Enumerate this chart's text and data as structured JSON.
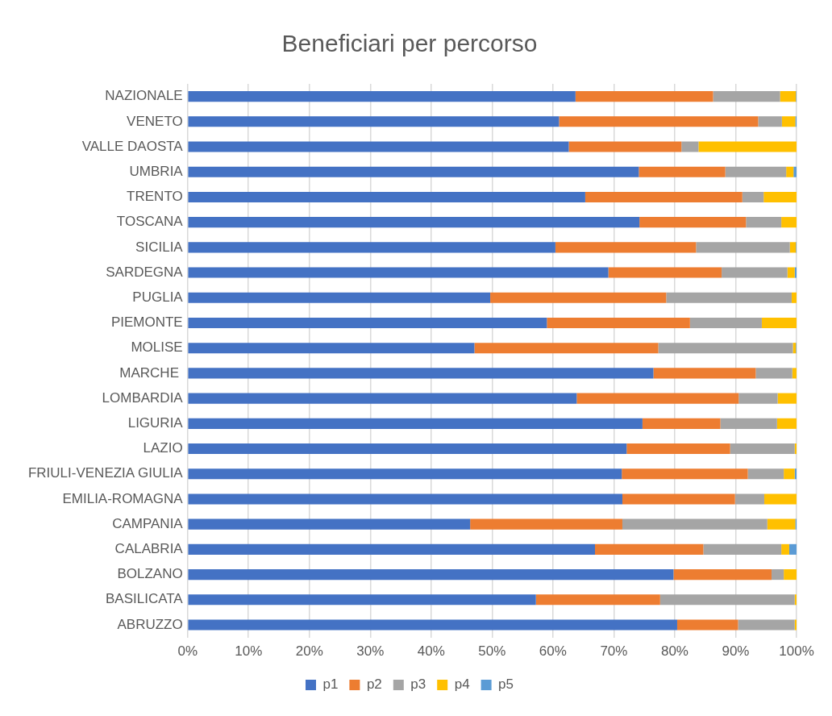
{
  "chart_data": {
    "type": "bar",
    "orientation": "horizontal",
    "stacked": true,
    "title": "Beneficiari per percorso",
    "categories": [
      "NAZIONALE",
      "VENETO",
      "VALLE DAOSTA",
      "UMBRIA",
      "TRENTO",
      "TOSCANA",
      "SICILIA",
      "SARDEGNA",
      "PUGLIA",
      "PIEMONTE",
      "MOLISE",
      "MARCHE ",
      "LOMBARDIA",
      "LIGURIA",
      "LAZIO",
      "FRIULI-VENEZIA GIULIA",
      "EMILIA-ROMAGNA",
      "CAMPANIA",
      "CALABRIA",
      "BOLZANO",
      "BASILICATA",
      "ABRUZZO"
    ],
    "series": [
      {
        "name": "p1",
        "color": "#4472c4",
        "values": [
          63.7,
          61.0,
          62.6,
          74.1,
          65.3,
          74.2,
          60.4,
          69.1,
          49.7,
          59.0,
          47.1,
          76.5,
          63.9,
          74.7,
          72.1,
          71.3,
          71.4,
          46.4,
          66.9,
          79.8,
          57.2,
          80.4
        ]
      },
      {
        "name": "p2",
        "color": "#ed7d31",
        "values": [
          22.6,
          32.7,
          18.5,
          14.2,
          25.8,
          17.5,
          23.1,
          18.6,
          28.9,
          23.5,
          30.2,
          16.8,
          26.6,
          12.8,
          17.0,
          20.7,
          18.5,
          25.0,
          17.8,
          16.1,
          20.4,
          10.0
        ]
      },
      {
        "name": "p3",
        "color": "#a5a5a5",
        "values": [
          11.0,
          3.9,
          2.8,
          10.0,
          3.5,
          5.8,
          15.4,
          10.8,
          20.6,
          11.8,
          22.1,
          6.0,
          6.4,
          9.3,
          10.6,
          5.9,
          4.8,
          23.8,
          12.8,
          2.0,
          22.1,
          9.3
        ]
      },
      {
        "name": "p4",
        "color": "#ffc000",
        "values": [
          2.6,
          2.2,
          16.1,
          1.2,
          5.4,
          2.5,
          1.0,
          1.2,
          0.8,
          5.7,
          0.5,
          0.7,
          3.1,
          3.2,
          0.3,
          1.8,
          5.3,
          4.6,
          1.3,
          2.1,
          0.3,
          0.3
        ]
      },
      {
        "name": "p5",
        "color": "#5b9bd5",
        "values": [
          0.1,
          0.2,
          0,
          0.5,
          0,
          0,
          0.1,
          0.3,
          0,
          0,
          0.1,
          0,
          0,
          0,
          0,
          0.3,
          0,
          0.2,
          1.2,
          0,
          0,
          0
        ]
      }
    ],
    "xlim": [
      0,
      100
    ],
    "xticks": [
      {
        "value": 0,
        "label": "0%"
      },
      {
        "value": 10,
        "label": "10%"
      },
      {
        "value": 20,
        "label": "20%"
      },
      {
        "value": 30,
        "label": "30%"
      },
      {
        "value": 40,
        "label": "40%"
      },
      {
        "value": 50,
        "label": "50%"
      },
      {
        "value": 60,
        "label": "60%"
      },
      {
        "value": 70,
        "label": "70%"
      },
      {
        "value": 80,
        "label": "80%"
      },
      {
        "value": 90,
        "label": "90%"
      },
      {
        "value": 100,
        "label": "100%"
      }
    ],
    "grid": "x",
    "legend": "bottom"
  }
}
